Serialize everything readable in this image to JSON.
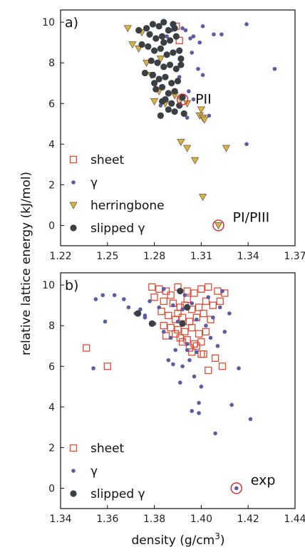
{
  "chart_data": [
    {
      "type": "scatter",
      "panel_label": "a)",
      "xlim": [
        1.22,
        1.37
      ],
      "ylim": [
        -1,
        10.6
      ],
      "x_ticks": [
        "1.22",
        "1.25",
        "1.28",
        "1.31",
        "1.34",
        "1.37"
      ],
      "y_ticks": [
        "0",
        "2",
        "4",
        "6",
        "8",
        "10"
      ],
      "legend_position": "lower-left",
      "series": [
        {
          "name": "sheet",
          "marker": "square-open",
          "color": "#e34a33",
          "points": [
            [
              1.294,
              9.8
            ],
            [
              1.296,
              9.1
            ]
          ]
        },
        {
          "name": "γ",
          "marker": "dot",
          "color": "#5b5ba8",
          "points": [
            [
              1.288,
              9.3
            ],
            [
              1.291,
              9.6
            ],
            [
              1.298,
              9.7
            ],
            [
              1.3,
              9.6
            ],
            [
              1.303,
              9.2
            ],
            [
              1.305,
              9.3
            ],
            [
              1.309,
              9.0
            ],
            [
              1.311,
              9.8
            ],
            [
              1.318,
              9.4
            ],
            [
              1.323,
              9.4
            ],
            [
              1.339,
              9.9
            ],
            [
              1.357,
              7.7
            ],
            [
              1.304,
              8.5
            ],
            [
              1.308,
              7.7
            ],
            [
              1.311,
              7.4
            ],
            [
              1.296,
              7.3
            ],
            [
              1.302,
              6.6
            ],
            [
              1.305,
              6.2
            ],
            [
              1.315,
              5.4
            ],
            [
              1.284,
              5.9
            ],
            [
              1.339,
              4.0
            ],
            [
              1.301,
              5.3
            ]
          ]
        },
        {
          "name": "herringbone",
          "marker": "triangle-down",
          "color": "#e0b13a",
          "points": [
            [
              1.263,
              9.7
            ],
            [
              1.266,
              8.9
            ],
            [
              1.27,
              8.7
            ],
            [
              1.272,
              9.5
            ],
            [
              1.275,
              8.0
            ],
            [
              1.278,
              7.4
            ],
            [
              1.284,
              8.2
            ],
            [
              1.283,
              6.6
            ],
            [
              1.287,
              6.0
            ],
            [
              1.28,
              6.1
            ],
            [
              1.293,
              6.4
            ],
            [
              1.297,
              6.2
            ],
            [
              1.301,
              6.0
            ],
            [
              1.31,
              5.7
            ],
            [
              1.309,
              5.4
            ],
            [
              1.311,
              5.3
            ],
            [
              1.312,
              5.2
            ],
            [
              1.301,
              3.8
            ],
            [
              1.306,
              3.2
            ],
            [
              1.297,
              4.1
            ],
            [
              1.326,
              3.8
            ],
            [
              1.311,
              1.4
            ],
            [
              1.321,
              0.0
            ]
          ]
        },
        {
          "name": "slipped γ",
          "marker": "dot-large",
          "color": "#3a3f44",
          "points": [
            [
              1.27,
              9.6
            ],
            [
              1.275,
              9.7
            ],
            [
              1.279,
              9.9
            ],
            [
              1.283,
              9.8
            ],
            [
              1.286,
              10.0
            ],
            [
              1.289,
              9.6
            ],
            [
              1.293,
              9.7
            ],
            [
              1.281,
              9.2
            ],
            [
              1.285,
              9.3
            ],
            [
              1.29,
              9.1
            ],
            [
              1.294,
              9.3
            ],
            [
              1.272,
              8.9
            ],
            [
              1.276,
              8.8
            ],
            [
              1.28,
              8.6
            ],
            [
              1.284,
              8.7
            ],
            [
              1.288,
              8.4
            ],
            [
              1.292,
              8.5
            ],
            [
              1.296,
              8.6
            ],
            [
              1.278,
              8.1
            ],
            [
              1.282,
              8.0
            ],
            [
              1.286,
              7.8
            ],
            [
              1.29,
              7.9
            ],
            [
              1.294,
              7.7
            ],
            [
              1.274,
              7.5
            ],
            [
              1.279,
              7.4
            ],
            [
              1.283,
              7.2
            ],
            [
              1.287,
              7.3
            ],
            [
              1.291,
              7.0
            ],
            [
              1.295,
              7.1
            ],
            [
              1.281,
              6.7
            ],
            [
              1.285,
              6.8
            ],
            [
              1.289,
              6.5
            ],
            [
              1.293,
              6.6
            ],
            [
              1.287,
              6.2
            ],
            [
              1.291,
              6.0
            ],
            [
              1.296,
              5.9
            ],
            [
              1.298,
              6.3
            ],
            [
              1.293,
              5.6
            ],
            [
              1.289,
              5.7
            ],
            [
              1.285,
              6.1
            ],
            [
              1.292,
              9.9
            ],
            [
              1.277,
              9.4
            ],
            [
              1.297,
              7.9
            ],
            [
              1.28,
              7.0
            ],
            [
              1.299,
              5.5
            ],
            [
              1.286,
              9.0
            ],
            [
              1.284,
              5.4
            ],
            [
              1.297,
              8.2
            ]
          ]
        }
      ],
      "annotations": [
        {
          "text": "PII",
          "at": [
            1.298,
            6.2
          ]
        },
        {
          "text": "PI/PIII",
          "at": [
            1.321,
            0.0
          ]
        }
      ]
    },
    {
      "type": "scatter",
      "panel_label": "b)",
      "xlim": [
        1.34,
        1.44
      ],
      "ylim": [
        -1,
        10.6
      ],
      "x_ticks": [
        "1.34",
        "1.36",
        "1.38",
        "1.40",
        "1.42",
        "1.44"
      ],
      "y_ticks": [
        "0",
        "2",
        "4",
        "6",
        "8",
        "10"
      ],
      "legend_position": "lower-left",
      "series": [
        {
          "name": "sheet",
          "marker": "square-open",
          "color": "#e34a33",
          "points": [
            [
              1.351,
              6.9
            ],
            [
              1.36,
              6.0
            ],
            [
              1.379,
              9.9
            ],
            [
              1.382,
              9.8
            ],
            [
              1.385,
              9.7
            ],
            [
              1.39,
              9.9
            ],
            [
              1.394,
              9.7
            ],
            [
              1.397,
              9.6
            ],
            [
              1.4,
              9.8
            ],
            [
              1.403,
              9.9
            ],
            [
              1.407,
              9.7
            ],
            [
              1.41,
              9.6
            ],
            [
              1.38,
              9.4
            ],
            [
              1.384,
              9.2
            ],
            [
              1.388,
              9.1
            ],
            [
              1.391,
              8.9
            ],
            [
              1.393,
              9.0
            ],
            [
              1.396,
              8.8
            ],
            [
              1.399,
              8.9
            ],
            [
              1.402,
              9.2
            ],
            [
              1.405,
              9.0
            ],
            [
              1.383,
              8.7
            ],
            [
              1.386,
              8.5
            ],
            [
              1.389,
              8.3
            ],
            [
              1.392,
              8.4
            ],
            [
              1.395,
              8.2
            ],
            [
              1.398,
              8.4
            ],
            [
              1.401,
              8.6
            ],
            [
              1.404,
              8.3
            ],
            [
              1.387,
              7.9
            ],
            [
              1.39,
              7.8
            ],
            [
              1.393,
              7.7
            ],
            [
              1.396,
              7.9
            ],
            [
              1.399,
              7.6
            ],
            [
              1.402,
              7.7
            ],
            [
              1.385,
              7.5
            ],
            [
              1.391,
              7.4
            ],
            [
              1.394,
              7.3
            ],
            [
              1.397,
              7.1
            ],
            [
              1.4,
              7.2
            ],
            [
              1.395,
              6.9
            ],
            [
              1.398,
              7.0
            ],
            [
              1.401,
              6.6
            ],
            [
              1.406,
              6.4
            ],
            [
              1.403,
              5.8
            ],
            [
              1.409,
              6.0
            ],
            [
              1.389,
              7.6
            ],
            [
              1.392,
              7.2
            ],
            [
              1.396,
              6.7
            ],
            [
              1.384,
              8.0
            ],
            [
              1.408,
              9.2
            ],
            [
              1.387,
              9.5
            ],
            [
              1.394,
              9.3
            ],
            [
              1.4,
              6.6
            ],
            [
              1.39,
              8.6
            ]
          ]
        },
        {
          "name": "γ",
          "marker": "dot",
          "color": "#5b5ba8",
          "points": [
            [
              1.354,
              5.9
            ],
            [
              1.355,
              9.3
            ],
            [
              1.358,
              9.5
            ],
            [
              1.363,
              9.5
            ],
            [
              1.367,
              9.3
            ],
            [
              1.369,
              8.9
            ],
            [
              1.372,
              8.6
            ],
            [
              1.374,
              8.8
            ],
            [
              1.378,
              9.2
            ],
            [
              1.382,
              8.9
            ],
            [
              1.376,
              8.4
            ],
            [
              1.38,
              8.1
            ],
            [
              1.384,
              7.7
            ],
            [
              1.387,
              7.4
            ],
            [
              1.389,
              6.8
            ],
            [
              1.386,
              6.3
            ],
            [
              1.388,
              6.1
            ],
            [
              1.392,
              6.0
            ],
            [
              1.395,
              6.3
            ],
            [
              1.398,
              6.7
            ],
            [
              1.391,
              5.2
            ],
            [
              1.397,
              5.5
            ],
            [
              1.4,
              5.0
            ],
            [
              1.396,
              3.8
            ],
            [
              1.399,
              3.7
            ],
            [
              1.406,
              2.7
            ],
            [
              1.421,
              3.4
            ],
            [
              1.413,
              4.1
            ],
            [
              1.416,
              5.9
            ],
            [
              1.41,
              7.7
            ],
            [
              1.412,
              8.6
            ],
            [
              1.405,
              8.4
            ],
            [
              1.408,
              8.9
            ],
            [
              1.403,
              9.4
            ],
            [
              1.409,
              9.7
            ],
            [
              1.384,
              9.8
            ],
            [
              1.393,
              9.5
            ],
            [
              1.396,
              9.1
            ],
            [
              1.402,
              8.0
            ],
            [
              1.404,
              7.4
            ],
            [
              1.407,
              7.0
            ],
            [
              1.394,
              7.1
            ],
            [
              1.39,
              8.2
            ],
            [
              1.398,
              8.3
            ],
            [
              1.388,
              9.0
            ],
            [
              1.359,
              8.2
            ],
            [
              1.376,
              8.5
            ],
            [
              1.392,
              8.8
            ],
            [
              1.394,
              6.8
            ],
            [
              1.399,
              4.2
            ],
            [
              1.415,
              0.0
            ]
          ]
        },
        {
          "name": "slipped γ",
          "marker": "dot-large",
          "color": "#3a3f44",
          "points": [
            [
              1.373,
              8.6
            ],
            [
              1.379,
              8.1
            ],
            [
              1.391,
              9.7
            ],
            [
              1.394,
              8.9
            ],
            [
              1.392,
              8.1
            ]
          ]
        }
      ],
      "annotations": [
        {
          "text": "exp",
          "at": [
            1.415,
            0.0
          ]
        }
      ]
    }
  ],
  "shared": {
    "ylabel": "relative lattice energy (kJ/mol)",
    "xlabel": "density (g/cm³)",
    "xlabel_main": "density (g/cm",
    "xlabel_sup": "3",
    "xlabel_tail": ")"
  }
}
